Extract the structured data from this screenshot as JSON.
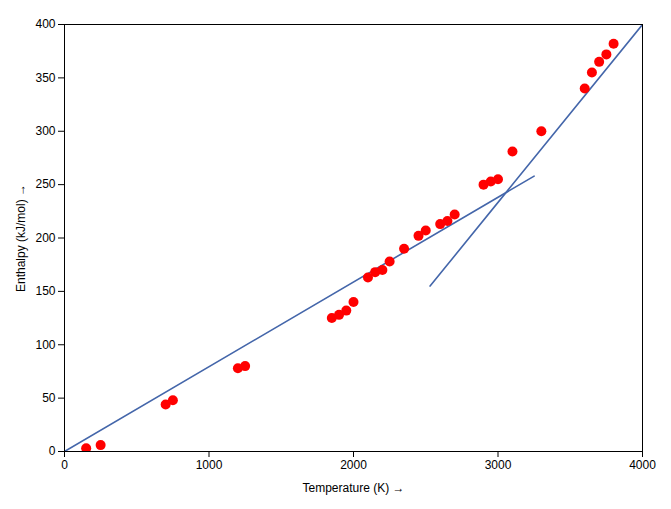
{
  "chart_data": {
    "type": "scatter",
    "xlabel": "Temperature (K)",
    "ylabel": "Enthalpy (kJ/mol)",
    "series": [
      {
        "type": "line",
        "color": "#4466aa",
        "x": [
          0,
          3250
        ],
        "values": [
          0,
          258
        ]
      },
      {
        "type": "line",
        "color": "#4466aa",
        "x": [
          2530,
          4000
        ],
        "values": [
          155,
          400
        ]
      },
      {
        "type": "scatter",
        "color": "#ff0000",
        "x": [
          150,
          250,
          700,
          750,
          1200,
          1250,
          1850,
          1900,
          1950,
          2000,
          2100,
          2150,
          2200,
          2250,
          2350,
          2450,
          2500,
          2600,
          2650,
          2700,
          2900,
          2950,
          3000,
          3100,
          3300,
          3600,
          3650,
          3700,
          3750,
          3800
        ],
        "values": [
          3,
          6,
          44,
          48,
          78,
          80,
          125,
          128,
          132,
          140,
          163,
          168,
          170,
          178,
          190,
          202,
          207,
          213,
          216,
          222,
          250,
          253,
          255,
          281,
          300,
          340,
          355,
          365,
          372,
          382
        ]
      }
    ],
    "xlim": [
      0,
      4000
    ],
    "ylim": [
      0,
      400
    ],
    "xticks": [
      0,
      1000,
      2000,
      3000,
      4000
    ],
    "yticks": [
      0,
      50,
      100,
      150,
      200,
      250,
      300,
      350,
      400
    ],
    "grid": false
  }
}
